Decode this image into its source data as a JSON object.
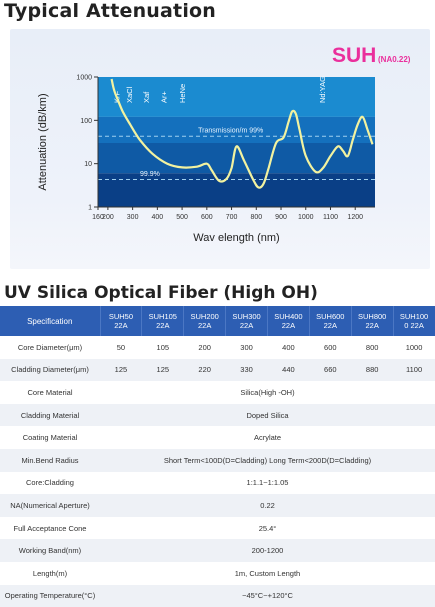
{
  "titles": {
    "attenuation": "Typical Attenuation",
    "fiber": "UV Silica Optical Fiber (High OH)"
  },
  "chart_data": {
    "type": "line",
    "brand": "SUH",
    "brand_sub": "(NA0.22)",
    "xlabel": "Wav elength (nm)",
    "ylabel": "Attenuation (dB/km)",
    "xlim": [
      160,
      1280
    ],
    "ylim": [
      1,
      1000
    ],
    "y_scale": "log",
    "x_ticks": [
      "160",
      "200",
      "300",
      "400",
      "500",
      "600",
      "700",
      "800",
      "900",
      "1000",
      "1100",
      "1200"
    ],
    "y_ticks": [
      "1000",
      "100",
      "10",
      "1"
    ],
    "laser_lines": [
      "KrF",
      "XaCl",
      "Xaf",
      "Ar+",
      "HeNe",
      "Nd:YAG"
    ],
    "annotations": [
      "Transmission/m 99%",
      "99.9%"
    ],
    "series": [
      {
        "x": [
          215,
          225,
          240,
          260,
          290,
          330,
          380,
          440,
          500,
          560,
          600,
          620,
          650,
          680,
          700,
          720,
          750,
          790,
          810,
          830,
          850,
          880,
          910,
          930,
          945,
          960,
          975,
          1000,
          1040,
          1070,
          1100,
          1130,
          1150,
          1170,
          1190,
          1210,
          1230,
          1250,
          1270
        ],
        "y": [
          900,
          500,
          300,
          160,
          80,
          35,
          17,
          10,
          8.2,
          8.5,
          10,
          7,
          4,
          4.5,
          8,
          25,
          12,
          4,
          2.8,
          3.5,
          8,
          30,
          40,
          90,
          160,
          140,
          60,
          15,
          6.5,
          8,
          15,
          25,
          20,
          15,
          35,
          80,
          120,
          60,
          28
        ]
      }
    ],
    "colors": {
      "curve": "#f2f2a0",
      "band1": "#1b8bd0",
      "band2": "#1470bd",
      "band3": "#0f5aa5",
      "band4": "#0a3f86",
      "brand": "#ea2f9c"
    }
  },
  "table": {
    "spec_header": "Specification",
    "columns": [
      [
        "SUH50",
        "22A"
      ],
      [
        "SUH105",
        "22A"
      ],
      [
        "SUH200",
        "22A"
      ],
      [
        "SUH300",
        "22A"
      ],
      [
        "SUH400",
        "22A"
      ],
      [
        "SUH600",
        "22A"
      ],
      [
        "SUH800",
        "22A"
      ],
      [
        "SUH100",
        "0 22A"
      ]
    ],
    "rows": [
      {
        "label": "Core Diameter(μm)",
        "values": [
          "50",
          "105",
          "200",
          "300",
          "400",
          "600",
          "800",
          "1000"
        ]
      },
      {
        "label": "Cladding Diameter(μm)",
        "values": [
          "125",
          "125",
          "220",
          "330",
          "440",
          "660",
          "880",
          "1100"
        ]
      },
      {
        "label": "Core Material",
        "span": "Silica(High -OH)"
      },
      {
        "label": "Cladding  Material",
        "span": "Doped Silica"
      },
      {
        "label": "Coating  Material",
        "span": "Acrylate"
      },
      {
        "label": "Min.Bend Radius",
        "span": "Short Term<100D(D=Cladding)  Long Term<200D(D=Cladding)"
      },
      {
        "label": "Core:Cladding",
        "span": "1:1.1~1:1.05"
      },
      {
        "label": "NA(Numerical Aperture)",
        "span": "0.22"
      },
      {
        "label": "Full Acceptance Cone",
        "span": "25.4°"
      },
      {
        "label": "Working Band(nm)",
        "span": "200-1200"
      },
      {
        "label": "Length(m)",
        "span": "1m, Custom Length"
      },
      {
        "label": "Operating Temperature(°C)",
        "span": "−45°C~+120°C"
      }
    ]
  }
}
